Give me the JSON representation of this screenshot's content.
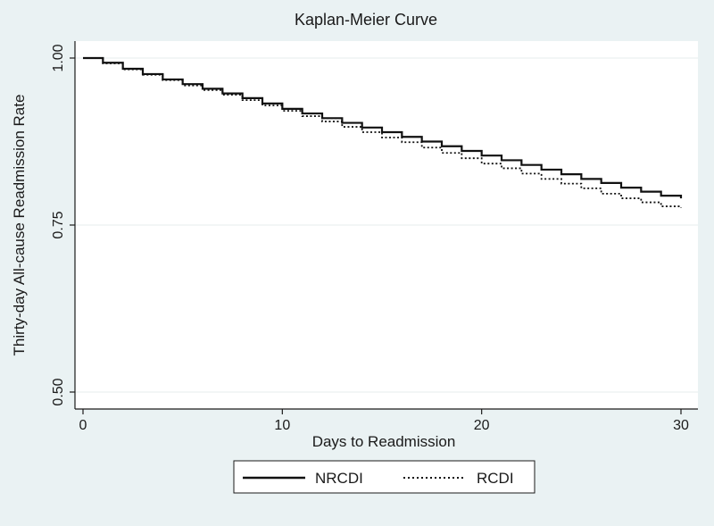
{
  "chart_data": {
    "type": "line",
    "step": true,
    "title": "Kaplan-Meier Curve",
    "xlabel": "Days to Readmission",
    "ylabel": "Thirty-day All-cause Readmission Rate",
    "xlim": [
      0,
      30
    ],
    "ylim": [
      0.5,
      1.0
    ],
    "x_ticks": [
      0,
      10,
      20,
      30
    ],
    "x_tick_labels": [
      "0",
      "10",
      "20",
      "30"
    ],
    "y_ticks": [
      0.5,
      0.75,
      1.0
    ],
    "y_tick_labels": [
      "0.50",
      "0.75",
      "1.00"
    ],
    "grid": true,
    "legend_position": "bottom",
    "x": [
      0,
      1,
      2,
      3,
      4,
      5,
      6,
      7,
      8,
      9,
      10,
      11,
      12,
      13,
      14,
      15,
      16,
      17,
      18,
      19,
      20,
      21,
      22,
      23,
      24,
      25,
      26,
      27,
      28,
      29,
      30
    ],
    "series": [
      {
        "name": "NRCDI",
        "style": "solid",
        "color": "#111111",
        "values": [
          1.0,
          0.993,
          0.984,
          0.976,
          0.968,
          0.961,
          0.954,
          0.947,
          0.94,
          0.932,
          0.924,
          0.917,
          0.91,
          0.903,
          0.896,
          0.889,
          0.882,
          0.875,
          0.868,
          0.861,
          0.854,
          0.847,
          0.84,
          0.833,
          0.826,
          0.819,
          0.813,
          0.806,
          0.8,
          0.794,
          0.79
        ]
      },
      {
        "name": "RCDI",
        "style": "dotted",
        "color": "#111111",
        "values": [
          1.0,
          0.992,
          0.983,
          0.975,
          0.967,
          0.959,
          0.952,
          0.945,
          0.937,
          0.929,
          0.921,
          0.913,
          0.905,
          0.897,
          0.889,
          0.881,
          0.874,
          0.866,
          0.858,
          0.85,
          0.842,
          0.835,
          0.827,
          0.819,
          0.812,
          0.805,
          0.797,
          0.79,
          0.784,
          0.778,
          0.776
        ]
      }
    ]
  }
}
